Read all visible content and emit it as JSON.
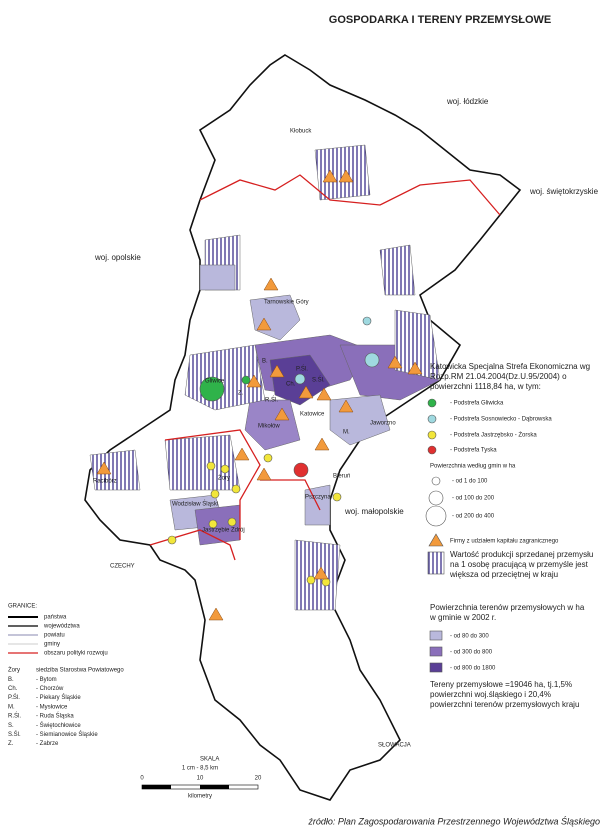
{
  "header": {
    "title": "GOSPODARKA  I  TERENY PRZEMYSŁOWE"
  },
  "regions": [
    "woj. łódzkie",
    "woj. świętokrzyskie",
    "woj. opolskie",
    "woj. małopolskie",
    "CZECHY",
    "SŁOWACJA"
  ],
  "places": [
    "Kłobuck",
    "Tarnowskie Góry",
    "Gliwice",
    "Z.",
    "B.",
    "P.Śl.",
    "S.Śl.",
    "Ch.",
    "R.Śl.",
    "Mikołów",
    "Katowice",
    "M.",
    "Jaworzno",
    "Racibórz",
    "Wodzisław Śląski",
    "Żory",
    "Jastrzębie Zdrój",
    "Pszczyna",
    "Bieruń"
  ],
  "legend": {
    "ksse": "Katowicka Specjalna Strefa Ekonomiczna wg Rozp.RM 21.04.2004(Dz.U.95/2004) o powierzchni 1118,84 ha, w tym:",
    "subzones": [
      "- Podstrefa Gliwicka",
      "- Podstrefa Sosnowiecko - Dąbrowska",
      "- Podstrefa Jastrzębsko - Żorska",
      "- Podstrefa Tyska"
    ],
    "area_title": "Powierzchnia według gmin w ha",
    "area_classes": [
      "- od 1 do 100",
      "- od 100 do 200",
      "- od 200 do 400"
    ],
    "firms": "Firmy z udziałem kapitału zagranicznego",
    "production": "Wartość produkcji sprzedanej przemysłu na 1 osobę pracującą w przemyśle jest większa od przeciętnej w kraju",
    "industrial_title": "Powierzchnia terenów przemysłowych w ha w gminie w 2002 r.",
    "industrial_classes": [
      "- od 80 do 300",
      "- od 300 do 800",
      "- od 800 do 1800"
    ],
    "summary": "Tereny przemysłowe =19046 ha, tj.1,5% powierzchni woj.śląskiego i 20,4% powierzchni terenów przemysłowych kraju"
  },
  "borders": {
    "title": "GRANICE:",
    "items": [
      "państwa",
      "województwa",
      "powiatu",
      "gminy",
      "obszaru polityki rozwoju"
    ]
  },
  "abbreviations": [
    [
      "Żory",
      "siedziba Starostwa Powiatowego"
    ],
    [
      "B.",
      "- Bytom"
    ],
    [
      "Ch.",
      "- Chorzów"
    ],
    [
      "P.Śl.",
      "- Piekary Śląskie"
    ],
    [
      "M.",
      "- Mysłowice"
    ],
    [
      "R.Śl.",
      "- Ruda Śląska"
    ],
    [
      "S.",
      "- Świętochłowice"
    ],
    [
      "S.Śl.",
      "- Siemianowice Śląskie"
    ],
    [
      "Z.",
      "- Zabrze"
    ]
  ],
  "scale": {
    "title": "SKALA",
    "ratio": "1 cm - 8,5 km",
    "ticks": [
      "0",
      "10",
      "20"
    ],
    "unit": "kilometry"
  },
  "source": "źródło: Plan Zagospodarowania Przestrzennego Województwa Śląskiego"
}
